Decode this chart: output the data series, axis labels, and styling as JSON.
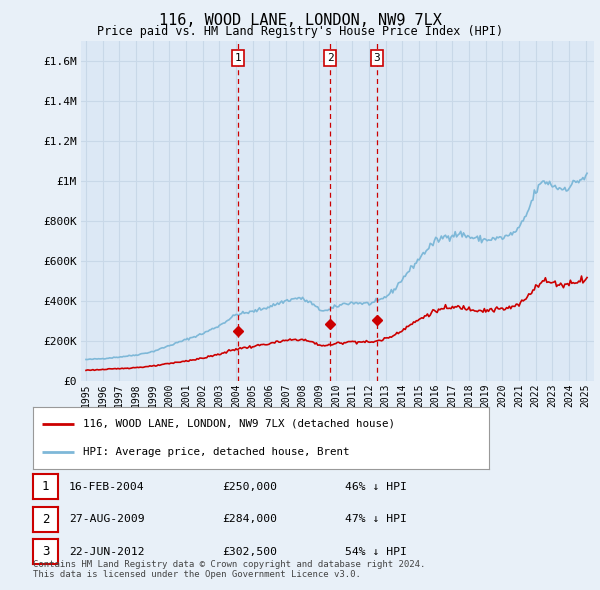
{
  "title": "116, WOOD LANE, LONDON, NW9 7LX",
  "subtitle": "Price paid vs. HM Land Registry's House Price Index (HPI)",
  "background_color": "#e8f0f8",
  "plot_bg_color": "#dce8f5",
  "grid_color": "#c8d8e8",
  "hpi_line_color": "#7eb8d8",
  "price_line_color": "#cc0000",
  "ylim": [
    0,
    1700000
  ],
  "yticks": [
    0,
    200000,
    400000,
    600000,
    800000,
    1000000,
    1200000,
    1400000,
    1600000
  ],
  "ytick_labels": [
    "£0",
    "£200K",
    "£400K",
    "£600K",
    "£800K",
    "£1M",
    "£1.2M",
    "£1.4M",
    "£1.6M"
  ],
  "transactions": [
    {
      "label": "1",
      "date": "16-FEB-2004",
      "price": 250000,
      "pct": "46% ↓ HPI",
      "x_year": 2004.12
    },
    {
      "label": "2",
      "date": "27-AUG-2009",
      "price": 284000,
      "pct": "47% ↓ HPI",
      "x_year": 2009.65
    },
    {
      "label": "3",
      "date": "22-JUN-2012",
      "price": 302500,
      "pct": "54% ↓ HPI",
      "x_year": 2012.47
    }
  ],
  "transaction_marker_values": [
    250000,
    284000,
    302500
  ],
  "legend_line1": "116, WOOD LANE, LONDON, NW9 7LX (detached house)",
  "legend_line2": "HPI: Average price, detached house, Brent",
  "footnote": "Contains HM Land Registry data © Crown copyright and database right 2024.\nThis data is licensed under the Open Government Licence v3.0.",
  "xlim_start": 1994.7,
  "xlim_end": 2025.5,
  "xticks": [
    1995,
    1996,
    1997,
    1998,
    1999,
    2000,
    2001,
    2002,
    2003,
    2004,
    2005,
    2006,
    2007,
    2008,
    2009,
    2010,
    2011,
    2012,
    2013,
    2014,
    2015,
    2016,
    2017,
    2018,
    2019,
    2020,
    2021,
    2022,
    2023,
    2024,
    2025
  ]
}
